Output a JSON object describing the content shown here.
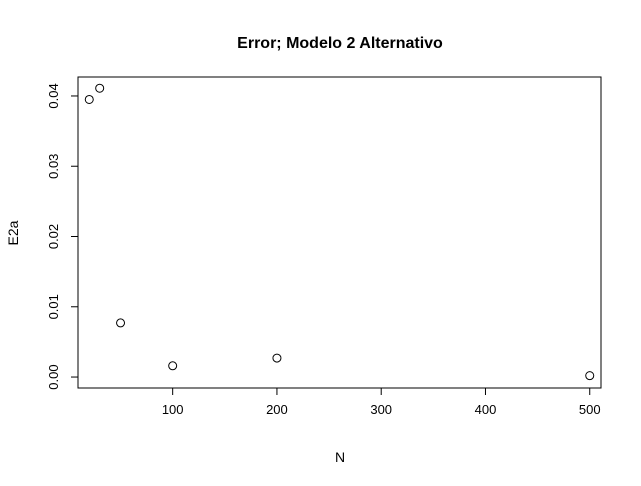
{
  "chart_data": {
    "type": "scatter",
    "title": "Error; Modelo 2 Alternativo",
    "xlabel": "N",
    "ylabel": "E2a",
    "x": [
      20,
      30,
      50,
      100,
      200,
      500
    ],
    "y": [
      0.0395,
      0.0411,
      0.0077,
      0.0016,
      0.0027,
      0.0002
    ],
    "xlim": [
      9.2,
      510.8
    ],
    "ylim": [
      -0.00156,
      0.0427
    ],
    "x_ticks": [
      100,
      200,
      300,
      400,
      500
    ],
    "x_tick_labels": [
      "100",
      "200",
      "300",
      "400",
      "500"
    ],
    "y_ticks": [
      0,
      0.01,
      0.02,
      0.03,
      0.04
    ],
    "y_tick_labels": [
      "0.00",
      "0.01",
      "0.02",
      "0.03",
      "0.04"
    ],
    "grid": false,
    "marker": "open-circle"
  }
}
